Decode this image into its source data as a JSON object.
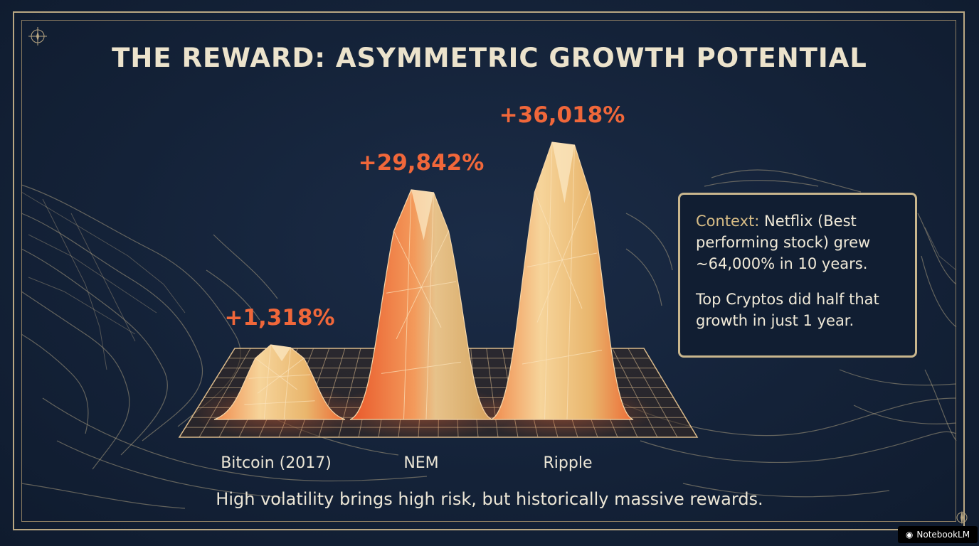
{
  "title": "THE REWARD: ASYMMETRIC GROWTH POTENTIAL",
  "chart_data": {
    "type": "bar",
    "categories": [
      "Bitcoin (2017)",
      "NEM",
      "Ripple"
    ],
    "values": [
      1318,
      29842,
      36018
    ],
    "value_labels": [
      "+1,318%",
      "+29,842%",
      "+36,018%"
    ],
    "unit": "%",
    "ylim": [
      0,
      36018
    ],
    "grid": true,
    "colors": {
      "label": "#f0673a",
      "peak_light": "#f6d49a",
      "peak_dark": "#e9582a"
    }
  },
  "context": {
    "label": "Context:",
    "text1": "Netflix (Best performing stock) grew ~64,000% in 10 years.",
    "text2": "Top Cryptos did half that growth in just 1 year."
  },
  "caption": "High volatility brings high risk, but historically massive rewards.",
  "watermark": {
    "icon": "notebook-icon",
    "text": "NotebookLM"
  },
  "colors": {
    "background": "#142238",
    "frame": "#b9a783",
    "title": "#ece3cc",
    "accent": "#f0673a"
  }
}
